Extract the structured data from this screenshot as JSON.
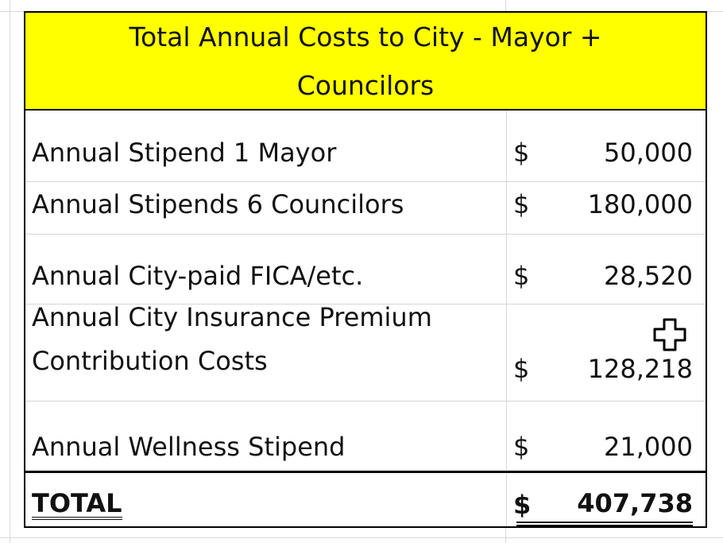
{
  "table": {
    "title_line1": "Total Annual Costs to City - Mayor +",
    "title_line2": "Councilors",
    "title_bg_color": "#ffff00",
    "rows": [
      {
        "label": "Annual Stipend 1 Mayor",
        "currency": "$",
        "amount": "50,000"
      },
      {
        "label": "Annual Stipends 6 Councilors",
        "currency": "$",
        "amount": "180,000"
      },
      {
        "label": "Annual City-paid FICA/etc.",
        "currency": "$",
        "amount": "28,520"
      },
      {
        "label_line1": "Annual City Insurance Premium",
        "label_line2": "Contribution Costs",
        "currency": "$",
        "amount": "128,218"
      },
      {
        "label": "Annual Wellness Stipend",
        "currency": "$",
        "amount": "21,000"
      }
    ],
    "total": {
      "label": "TOTAL",
      "currency": "$",
      "amount": "407,738"
    }
  },
  "cursor": {
    "icon": "move-cursor-icon"
  }
}
